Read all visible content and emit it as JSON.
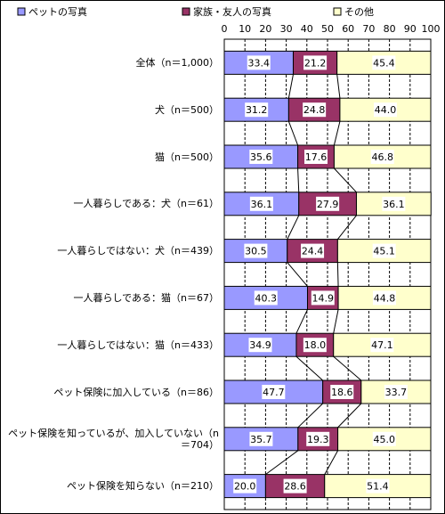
{
  "chart_data": {
    "type": "stacked-bar-100",
    "categories": [
      "全体（n＝1,000）",
      "犬（n＝500）",
      "猫（n＝500）",
      "一人暮らしである：犬（n＝61）",
      "一人暮らしではない：犬（n＝439）",
      "一人暮らしである：猫（n＝67）",
      "一人暮らしではない：猫（n＝433）",
      "ペット保険に加入している（n＝86）",
      "ペット保険を知っているが、加入していない（n＝704）",
      "ペット保険を知らない（n＝210）"
    ],
    "series": [
      {
        "name": "ペットの写真",
        "color": "#9999ff",
        "values": [
          33.4,
          31.2,
          35.6,
          36.1,
          30.5,
          40.3,
          34.9,
          47.7,
          35.7,
          20.0
        ],
        "value_labels": [
          "33.4",
          "31.2",
          "35.6",
          "36.1",
          "30.5",
          "40.3",
          "34.9",
          "47.7",
          "35.7",
          "20.0"
        ]
      },
      {
        "name": "家族・友人の写真",
        "color": "#993366",
        "values": [
          21.2,
          24.8,
          17.6,
          27.9,
          24.4,
          14.9,
          18.0,
          18.6,
          19.3,
          28.6
        ],
        "value_labels": [
          "21.2",
          "24.8",
          "17.6",
          "27.9",
          "24.4",
          "14.9",
          "18.0",
          "18.6",
          "19.3",
          "28.6"
        ]
      },
      {
        "name": "その他",
        "color": "#ffffcc",
        "values": [
          45.4,
          44.0,
          46.8,
          36.1,
          45.1,
          44.8,
          47.1,
          33.7,
          45.0,
          51.4
        ],
        "value_labels": [
          "45.4",
          "44.0",
          "46.8",
          "36.1",
          "45.1",
          "44.8",
          "47.1",
          "33.7",
          "45.0",
          "51.4"
        ]
      }
    ],
    "xlim": [
      0,
      100
    ],
    "xticks": [
      0,
      10,
      20,
      30,
      40,
      50,
      60,
      70,
      80,
      90,
      100
    ],
    "grid": true
  }
}
